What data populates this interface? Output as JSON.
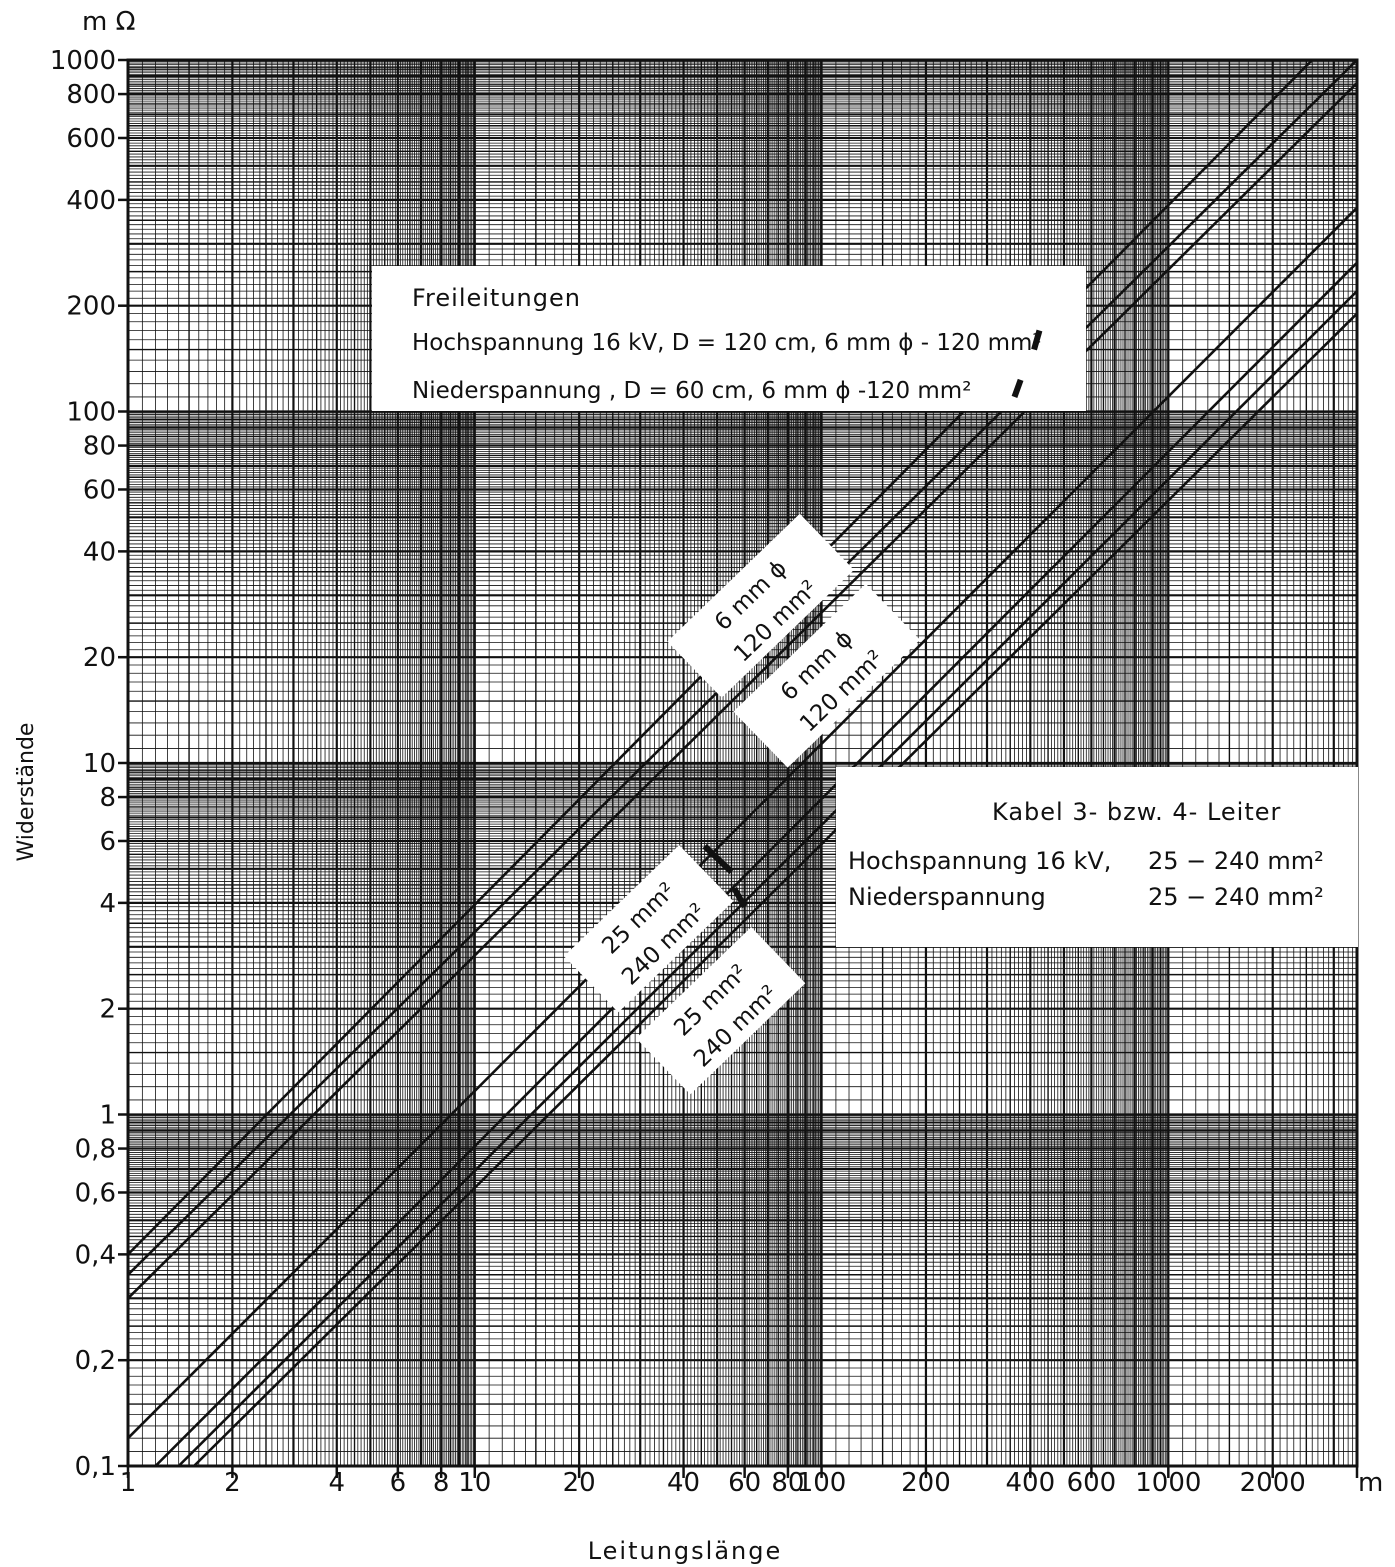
{
  "chart_data": {
    "type": "line",
    "x_scale": "log",
    "y_scale": "log",
    "xlim": [
      1,
      3500
    ],
    "ylim": [
      0.1,
      1000
    ],
    "grid": true,
    "y_unit": "m Ω",
    "x_unit": "m",
    "ylabel": "Widerstände",
    "xlabel": "Leitungslänge",
    "x_ticks": [
      {
        "v": 1,
        "label": "1"
      },
      {
        "v": 2,
        "label": "2"
      },
      {
        "v": 4,
        "label": "4"
      },
      {
        "v": 6,
        "label": "6"
      },
      {
        "v": 8,
        "label": "8"
      },
      {
        "v": 10,
        "label": "10"
      },
      {
        "v": 20,
        "label": "20"
      },
      {
        "v": 40,
        "label": "40"
      },
      {
        "v": 60,
        "label": "60"
      },
      {
        "v": 80,
        "label": "80"
      },
      {
        "v": 100,
        "label": "100"
      },
      {
        "v": 200,
        "label": "200"
      },
      {
        "v": 400,
        "label": "400"
      },
      {
        "v": 600,
        "label": "600"
      },
      {
        "v": 1000,
        "label": "1000"
      },
      {
        "v": 2000,
        "label": "2000"
      }
    ],
    "y_ticks": [
      {
        "v": 1000,
        "label": "1000"
      },
      {
        "v": 800,
        "label": "800"
      },
      {
        "v": 600,
        "label": "600"
      },
      {
        "v": 400,
        "label": "400"
      },
      {
        "v": 200,
        "label": "200"
      },
      {
        "v": 100,
        "label": "100"
      },
      {
        "v": 80,
        "label": "80"
      },
      {
        "v": 60,
        "label": "60"
      },
      {
        "v": 40,
        "label": "40"
      },
      {
        "v": 20,
        "label": "20"
      },
      {
        "v": 10,
        "label": "10"
      },
      {
        "v": 8,
        "label": "8"
      },
      {
        "v": 6,
        "label": "6"
      },
      {
        "v": 4,
        "label": "4"
      },
      {
        "v": 2,
        "label": "2"
      },
      {
        "v": 1,
        "label": "1"
      },
      {
        "v": 0.8,
        "label": "0,8"
      },
      {
        "v": 0.6,
        "label": "0,6"
      },
      {
        "v": 0.4,
        "label": "0,4"
      },
      {
        "v": 0.2,
        "label": "0,2"
      },
      {
        "v": 0.1,
        "label": "0,1"
      }
    ],
    "series": [
      {
        "x": [
          1,
          2600
        ],
        "y": [
          0.4,
          1000
        ]
      },
      {
        "x": [
          1,
          3500
        ],
        "y": [
          0.35,
          1000
        ]
      },
      {
        "x": [
          1,
          3500
        ],
        "y": [
          0.3,
          860
        ]
      },
      {
        "x": [
          1,
          3500
        ],
        "y": [
          0.12,
          380
        ]
      },
      {
        "x": [
          1.2,
          3500
        ],
        "y": [
          0.1,
          265
        ]
      },
      {
        "x": [
          1.4,
          3500
        ],
        "y": [
          0.1,
          220
        ]
      },
      {
        "x": [
          1.55,
          3500
        ],
        "y": [
          0.1,
          190
        ]
      }
    ],
    "markers": [
      {
        "x": [
          410,
          425
        ],
        "y": [
          150,
          170
        ]
      },
      {
        "x": [
          360,
          375
        ],
        "y": [
          110,
          123
        ]
      },
      {
        "x": [
          46,
          55
        ],
        "y": [
          5.8,
          4.9
        ]
      },
      {
        "x": [
          56,
          60
        ],
        "y": [
          4.4,
          3.9
        ]
      }
    ],
    "annotations": {
      "freileitungen": {
        "title": "Freileitungen",
        "line1": "Hochspannung 16 kV, D = 120 cm, 6 mm ϕ - 120 mm²",
        "line2": "Niederspannung , D = 60 cm, 6 mm ϕ -120 mm²"
      },
      "kabel": {
        "title": "Kabel 3- bzw. 4- Leiter",
        "row1_label": "Hochspannung 16 kV,",
        "row1_value": "25 − 240 mm²",
        "row2_label": "Niederspannung",
        "row2_value": "25 − 240 mm²"
      },
      "line_labels": {
        "hs_top": "6 mm ϕ",
        "hs_bottom": "120 mm²",
        "ns_top": "6 mm ϕ",
        "ns_bottom": "120 mm²",
        "kabel_hs_top": "25 mm²",
        "kabel_hs_bottom": "240 mm²",
        "kabel_ns_top": "25 mm²",
        "kabel_ns_bottom": "240 mm²"
      }
    }
  }
}
